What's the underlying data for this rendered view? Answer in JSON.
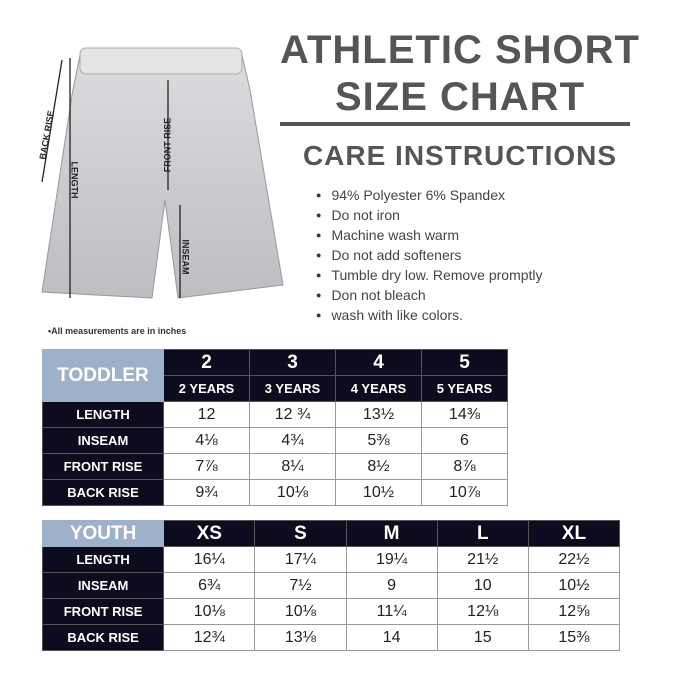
{
  "title": {
    "line1": "ATHLETIC SHORT",
    "line2": "SIZE CHART"
  },
  "care": {
    "heading": "CARE INSTRUCTIONS",
    "items": [
      "94% Polyester 6% Spandex",
      "Do not iron",
      "Machine wash warm",
      "Do not add softeners",
      "Tumble dry low. Remove promptly",
      "Don not bleach",
      "wash with like colors."
    ]
  },
  "diagram": {
    "back_rise": "BACK RISE",
    "front_rise": "FRONT RISE",
    "length": "LENGTH",
    "inseam": "INSEAM"
  },
  "note": "•All measurements are in inches",
  "toddler": {
    "category": "TODDLER",
    "sizes": [
      "2",
      "3",
      "4",
      "5"
    ],
    "ages": [
      "2 YEARS",
      "3 YEARS",
      "4 YEARS",
      "5 YEARS"
    ],
    "rows": [
      {
        "label": "LENGTH",
        "values": [
          "12",
          "12 ¾",
          "13½",
          "14⅜"
        ]
      },
      {
        "label": "INSEAM",
        "values": [
          "4⅛",
          "4¾",
          "5⅜",
          "6"
        ]
      },
      {
        "label": "FRONT RISE",
        "values": [
          "7⅞",
          "8¼",
          "8½",
          "8⅞"
        ]
      },
      {
        "label": "BACK RISE",
        "values": [
          "9¾",
          "10⅛",
          "10½",
          "10⅞"
        ]
      }
    ]
  },
  "youth": {
    "category": "YOUTH",
    "sizes": [
      "XS",
      "S",
      "M",
      "L",
      "XL"
    ],
    "rows": [
      {
        "label": "LENGTH",
        "values": [
          "16¼",
          "17¼",
          "19¼",
          "21½",
          "22½"
        ]
      },
      {
        "label": "INSEAM",
        "values": [
          "6¾",
          "7½",
          "9",
          "10",
          "10½"
        ]
      },
      {
        "label": "FRONT RISE",
        "values": [
          "10⅛",
          "10⅛",
          "11¼",
          "12⅛",
          "12⅝"
        ]
      },
      {
        "label": "BACK RISE",
        "values": [
          "12¾",
          "13⅛",
          "14",
          "15",
          "15⅜"
        ]
      }
    ]
  },
  "colors": {
    "header": "#0c0c1e",
    "category": "#9fb1c8",
    "title": "#555555"
  }
}
